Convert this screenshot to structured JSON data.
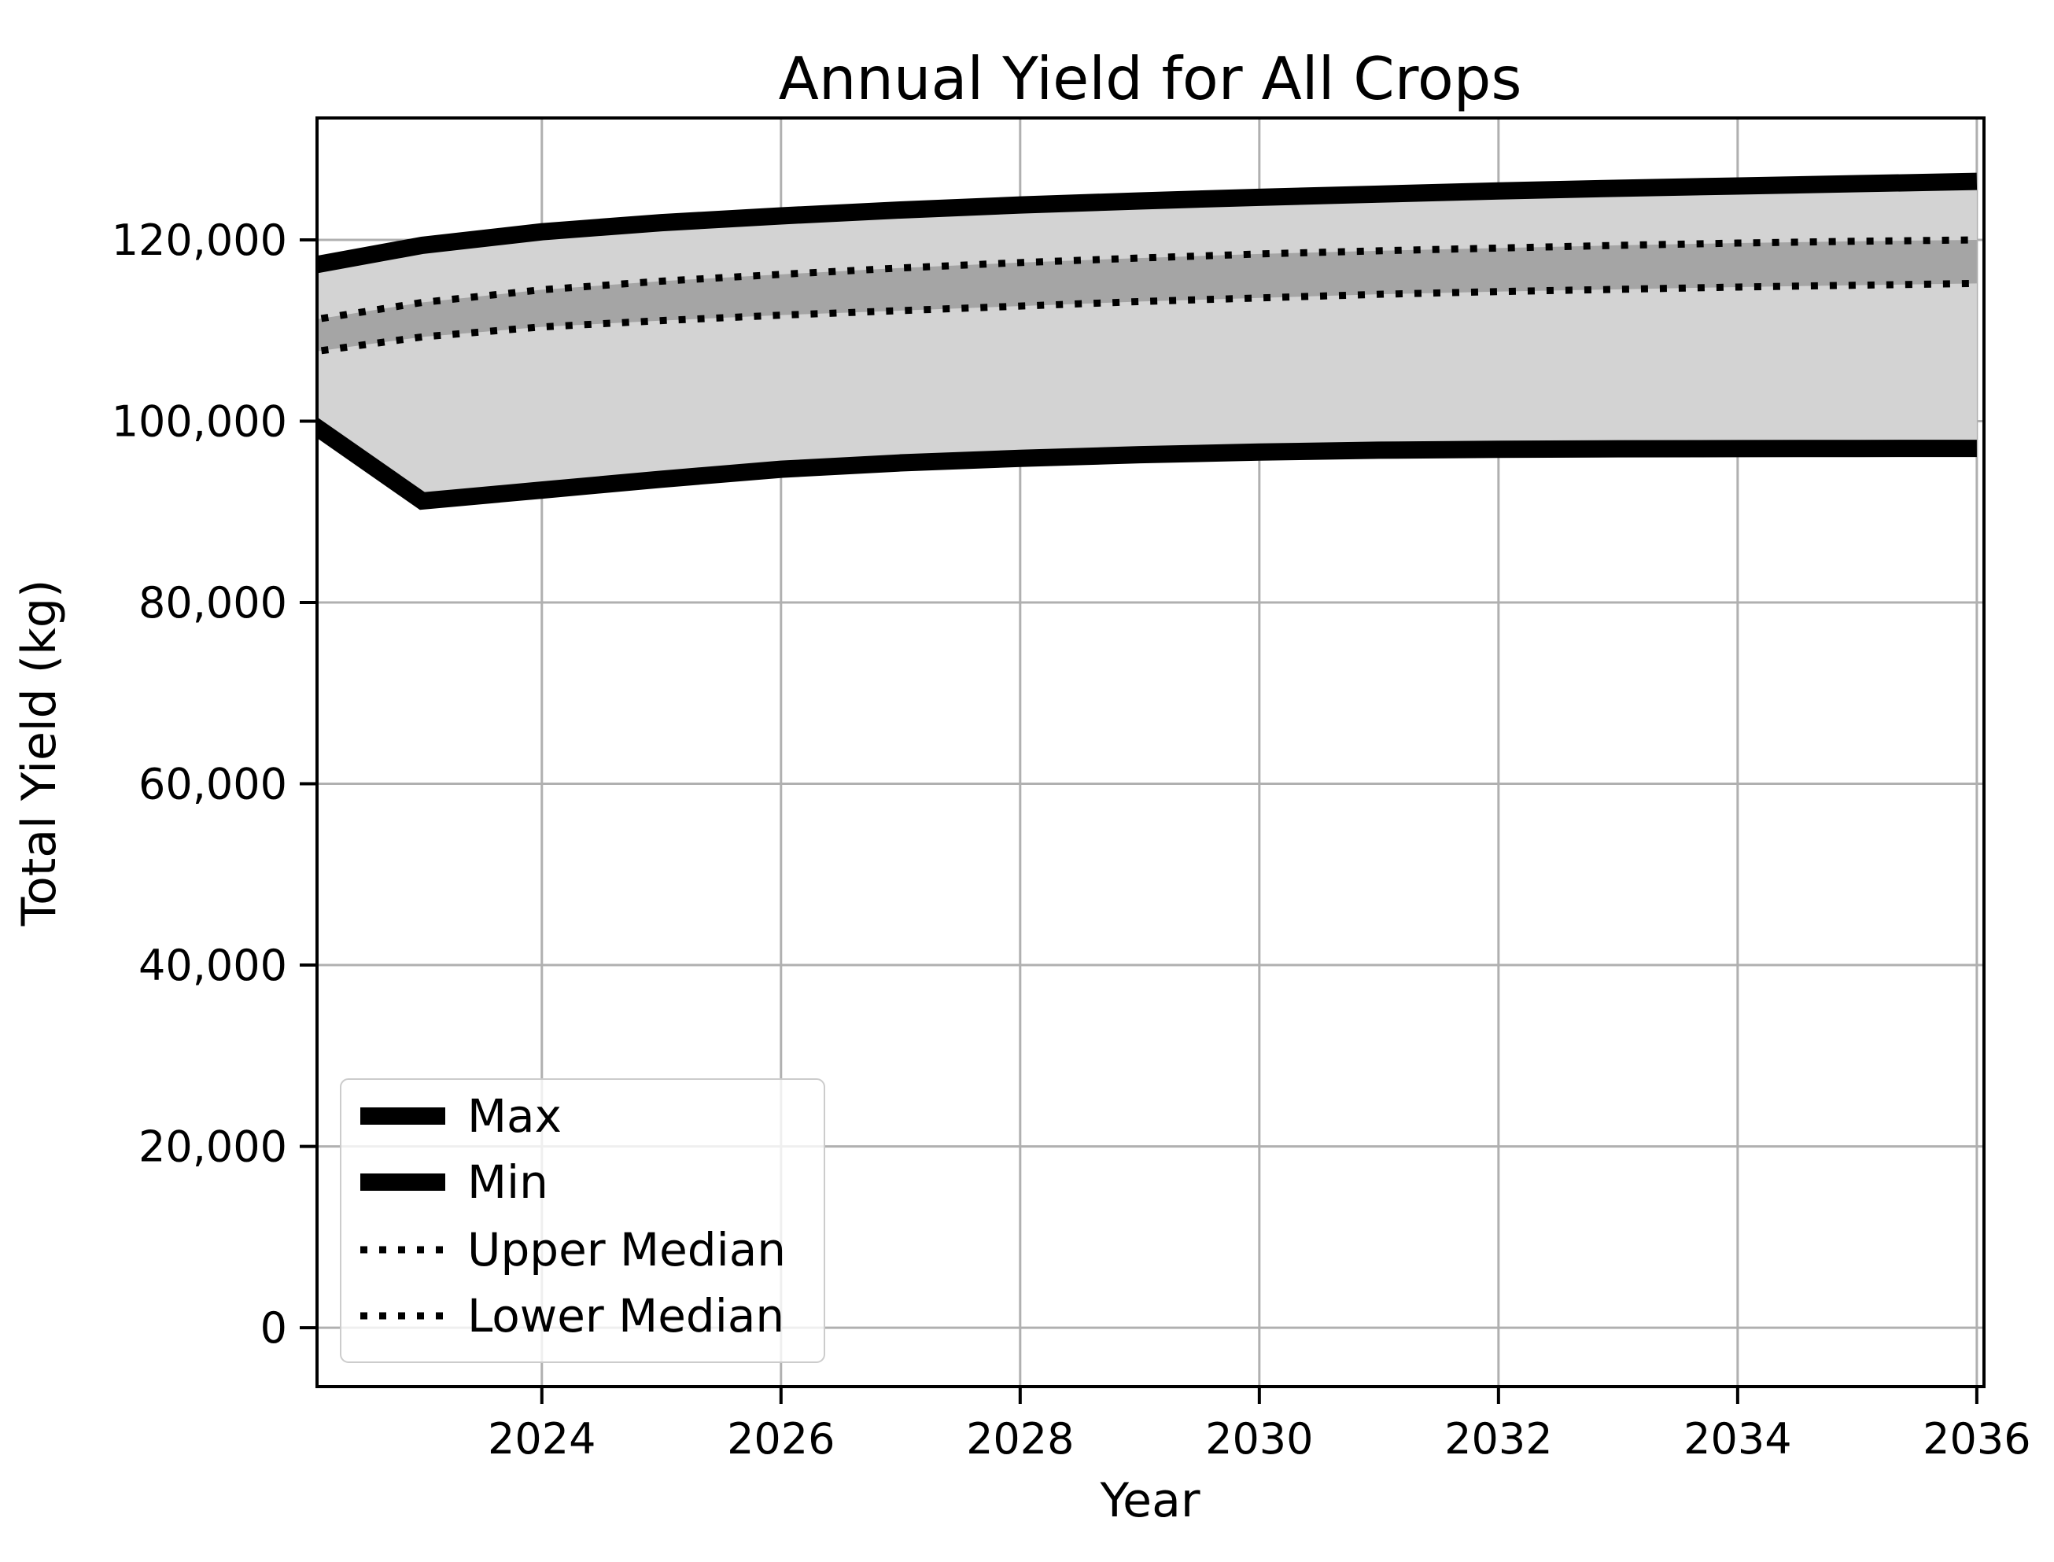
{
  "title": {
    "text": "Annual Yield for All Crops"
  },
  "x_axis": {
    "label": "Year",
    "ticks": [
      {
        "value": 2024,
        "label": "2024"
      },
      {
        "value": 2026,
        "label": "2026"
      },
      {
        "value": 2028,
        "label": "2028"
      },
      {
        "value": 2030,
        "label": "2030"
      },
      {
        "value": 2032,
        "label": "2032"
      },
      {
        "value": 2034,
        "label": "2034"
      },
      {
        "value": 2036,
        "label": "2036"
      }
    ]
  },
  "y_axis": {
    "label": "Total Yield (kg)",
    "ticks": [
      {
        "value": 0,
        "label": "0"
      },
      {
        "value": 20000,
        "label": "20,000"
      },
      {
        "value": 40000,
        "label": "40,000"
      },
      {
        "value": 60000,
        "label": "60,000"
      },
      {
        "value": 80000,
        "label": "80,000"
      },
      {
        "value": 100000,
        "label": "100,000"
      },
      {
        "value": 120000,
        "label": "120,000"
      }
    ]
  },
  "legend": {
    "items": [
      {
        "label": "Max",
        "series": "Max"
      },
      {
        "label": "Min",
        "series": "Min"
      },
      {
        "label": "Upper Median",
        "series": "Upper Median"
      },
      {
        "label": "Lower Median",
        "series": "Lower Median"
      }
    ],
    "position": "lower left"
  },
  "colors": {
    "background": "#ffffff",
    "line": "#000000",
    "outer_band": "#d3d3d3",
    "inner_band": "#a5a5a5",
    "grid": "#b0b0b0",
    "frame": "#000000",
    "legend_border": "#cccccc",
    "legend_bg": "rgba(255,255,255,0.8)"
  },
  "chart_data": {
    "type": "line",
    "title": "Annual Yield for All Crops",
    "xlabel": "Year",
    "ylabel": "Total Yield (kg)",
    "x": [
      2022,
      2023,
      2024,
      2025,
      2026,
      2027,
      2028,
      2029,
      2030,
      2031,
      2032,
      2033,
      2034,
      2035,
      2036
    ],
    "series": [
      {
        "name": "Max",
        "style": "solid-thick",
        "values": [
          117000,
          119400,
          120900,
          121900,
          122650,
          123300,
          123850,
          124300,
          124700,
          125050,
          125400,
          125700,
          125950,
          126200,
          126450
        ]
      },
      {
        "name": "Min",
        "style": "solid-thick",
        "values": [
          100400,
          91200,
          92400,
          93600,
          94700,
          95400,
          95900,
          96300,
          96600,
          96800,
          96900,
          96950,
          96980,
          96990,
          97000
        ]
      },
      {
        "name": "Upper Median",
        "style": "dotted",
        "values": [
          111000,
          113100,
          114500,
          115450,
          116200,
          116900,
          117500,
          118000,
          118450,
          118800,
          119100,
          119400,
          119650,
          119850,
          120000
        ]
      },
      {
        "name": "Lower Median",
        "style": "dotted",
        "values": [
          107500,
          109300,
          110400,
          111100,
          111700,
          112200,
          112700,
          113200,
          113600,
          114000,
          114300,
          114550,
          114800,
          115000,
          115200
        ]
      }
    ],
    "bands": [
      {
        "lower": "Min",
        "upper": "Max",
        "color": "#d3d3d3"
      },
      {
        "lower": "Lower Median",
        "upper": "Upper Median",
        "color": "#a5a5a5"
      }
    ],
    "xlim": [
      2022.12,
      2036.06
    ],
    "ylim": [
      -6500,
      133450
    ],
    "grid": true,
    "legend_position": "lower left"
  }
}
